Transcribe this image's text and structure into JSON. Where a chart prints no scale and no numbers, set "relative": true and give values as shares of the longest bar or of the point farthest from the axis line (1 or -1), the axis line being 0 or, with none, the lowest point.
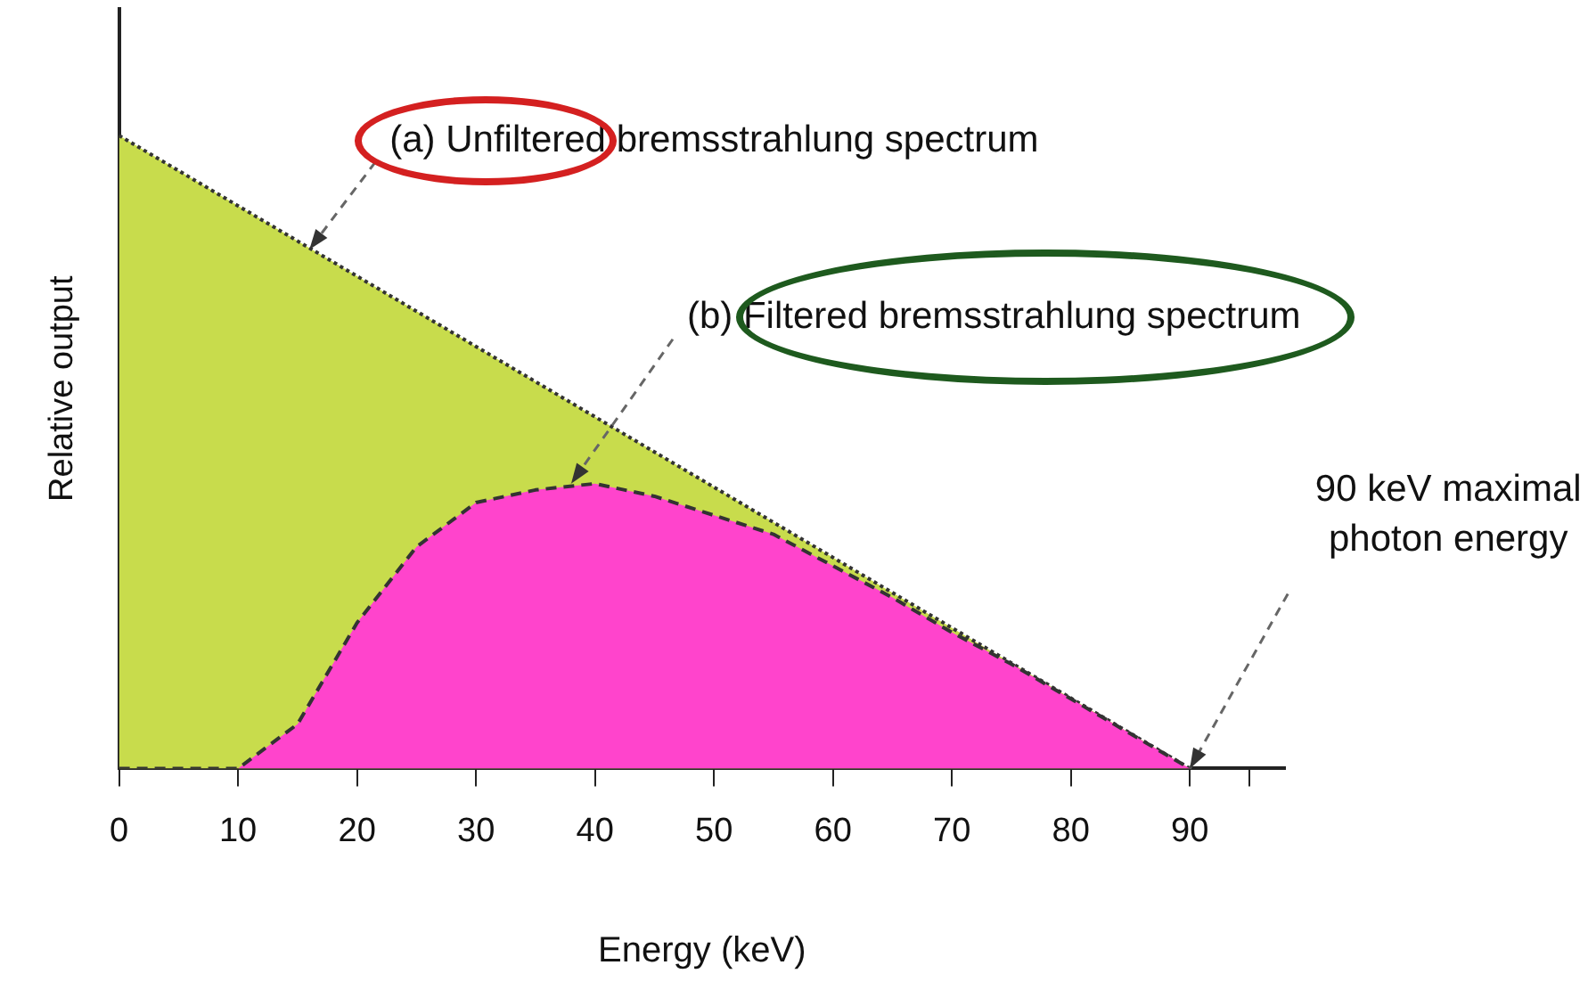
{
  "chart_data": {
    "type": "area",
    "xlabel": "Energy (keV)",
    "ylabel": "Relative output",
    "relative": true,
    "xlim": [
      0,
      98
    ],
    "xticks": [
      0,
      10,
      20,
      30,
      40,
      50,
      60,
      70,
      80,
      90,
      {
        "value": 95,
        "label": null
      }
    ],
    "tick_labels": "x",
    "grid": false,
    "legend": false,
    "series": [
      {
        "color": "#c8dc4c",
        "line_style": "dotted",
        "x": [
          0,
          90
        ],
        "values": [
          1,
          0
        ]
      },
      {
        "color": "#ff44cc",
        "line_style": "dashed",
        "x": [
          0,
          10,
          15,
          20,
          25,
          30,
          35,
          40,
          45,
          50,
          55,
          60,
          65,
          70,
          75,
          80,
          85,
          90
        ],
        "values": [
          0,
          0,
          0.07,
          0.23,
          0.35,
          0.42,
          0.44,
          0.45,
          0.43,
          0.4,
          0.37,
          0.32,
          0.27,
          0.215,
          0.165,
          0.11,
          0.055,
          0
        ]
      }
    ],
    "annotations": [
      {
        "text": "(a) Unfiltered bremsstrahlung spectrum",
        "x": 16,
        "y": 0.82
      },
      {
        "text": "(b) Filtered bremsstrahlung spectrum",
        "x": 38,
        "y": 0.45
      },
      {
        "text": "90 keV maximal photon energy",
        "x": 90,
        "y": 0
      }
    ]
  }
}
